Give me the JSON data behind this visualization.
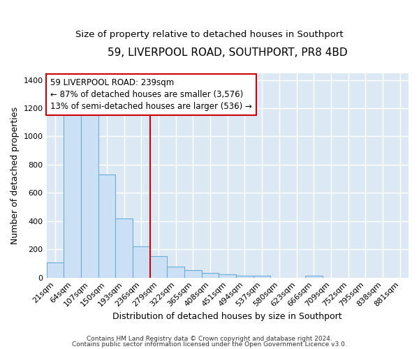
{
  "title": "59, LIVERPOOL ROAD, SOUTHPORT, PR8 4BD",
  "subtitle": "Size of property relative to detached houses in Southport",
  "xlabel": "Distribution of detached houses by size in Southport",
  "ylabel": "Number of detached properties",
  "categories": [
    "21sqm",
    "64sqm",
    "107sqm",
    "150sqm",
    "193sqm",
    "236sqm",
    "279sqm",
    "322sqm",
    "365sqm",
    "408sqm",
    "451sqm",
    "494sqm",
    "537sqm",
    "580sqm",
    "623sqm",
    "666sqm",
    "709sqm",
    "752sqm",
    "795sqm",
    "838sqm",
    "881sqm"
  ],
  "values": [
    105,
    1160,
    1160,
    730,
    420,
    220,
    150,
    75,
    50,
    35,
    25,
    15,
    15,
    0,
    0,
    15,
    0,
    0,
    0,
    0,
    0
  ],
  "bar_color": "#cce0f5",
  "bar_edge_color": "#6aaed6",
  "vline_x": 5.5,
  "vline_color": "#cc0000",
  "ylim": [
    0,
    1450
  ],
  "yticks": [
    0,
    200,
    400,
    600,
    800,
    1000,
    1200,
    1400
  ],
  "annotation_text_line1": "59 LIVERPOOL ROAD: 239sqm",
  "annotation_text_line2": "← 87% of detached houses are smaller (3,576)",
  "annotation_text_line3": "13% of semi-detached houses are larger (536) →",
  "footnote_line1": "Contains HM Land Registry data © Crown copyright and database right 2024.",
  "footnote_line2": "Contains public sector information licensed under the Open Government Licence v3.0.",
  "plot_bg_color": "#dce9f5",
  "title_fontsize": 11,
  "subtitle_fontsize": 9.5,
  "axis_label_fontsize": 9,
  "tick_fontsize": 8,
  "annotation_fontsize": 8.5,
  "footnote_fontsize": 6.5
}
